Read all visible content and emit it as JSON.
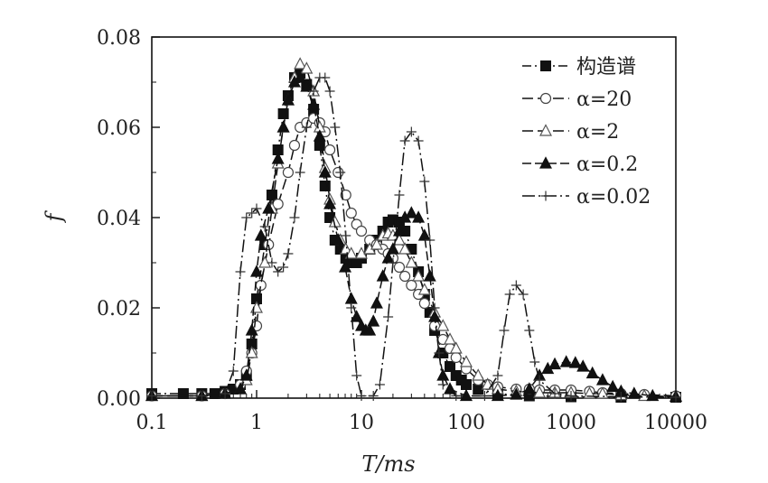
{
  "chart_data": {
    "type": "line",
    "xlabel": "T/ms",
    "ylabel": "f",
    "x_scale": "log",
    "xlim": [
      0.1,
      10000
    ],
    "ylim": [
      0,
      0.08
    ],
    "x_ticks": [
      "0.1",
      "1",
      "10",
      "100",
      "1000",
      "10000"
    ],
    "y_ticks": [
      "0.00",
      "0.02",
      "0.04",
      "0.06",
      "0.08"
    ],
    "legend_position": "top-right",
    "grid": false,
    "series": [
      {
        "name": "构造谱",
        "marker": "square-filled",
        "dash": "10 4 2 4",
        "points": [
          [
            0.1,
            0.001
          ],
          [
            0.2,
            0.001
          ],
          [
            0.3,
            0.001
          ],
          [
            0.4,
            0.001
          ],
          [
            0.5,
            0.0015
          ],
          [
            0.6,
            0.002
          ],
          [
            0.7,
            0.003
          ],
          [
            0.8,
            0.005
          ],
          [
            0.9,
            0.012
          ],
          [
            1.0,
            0.022
          ],
          [
            1.2,
            0.034
          ],
          [
            1.4,
            0.045
          ],
          [
            1.6,
            0.055
          ],
          [
            1.8,
            0.063
          ],
          [
            2.0,
            0.067
          ],
          [
            2.3,
            0.071
          ],
          [
            2.6,
            0.072
          ],
          [
            3.0,
            0.0695
          ],
          [
            3.5,
            0.064
          ],
          [
            4.0,
            0.056
          ],
          [
            4.5,
            0.047
          ],
          [
            5.0,
            0.04
          ],
          [
            5.6,
            0.035
          ],
          [
            6.3,
            0.033
          ],
          [
            7.1,
            0.031
          ],
          [
            8.0,
            0.03
          ],
          [
            9.0,
            0.03
          ],
          [
            10,
            0.031
          ],
          [
            12,
            0.033
          ],
          [
            14,
            0.035
          ],
          [
            16,
            0.037
          ],
          [
            18,
            0.039
          ],
          [
            20,
            0.0395
          ],
          [
            23,
            0.039
          ],
          [
            26,
            0.037
          ],
          [
            30,
            0.033
          ],
          [
            35,
            0.028
          ],
          [
            40,
            0.023
          ],
          [
            45,
            0.019
          ],
          [
            50,
            0.015
          ],
          [
            60,
            0.01
          ],
          [
            70,
            0.007
          ],
          [
            80,
            0.005
          ],
          [
            90,
            0.004
          ],
          [
            100,
            0.003
          ],
          [
            130,
            0.002
          ],
          [
            200,
            0.001
          ],
          [
            400,
            0.0005
          ],
          [
            1000,
            0.0003
          ],
          [
            3000,
            0.0002
          ],
          [
            10000,
            0.0002
          ]
        ]
      },
      {
        "name": "α=20",
        "marker": "circle-open",
        "dash": "12 5",
        "points": [
          [
            0.1,
            0.0005
          ],
          [
            0.3,
            0.0005
          ],
          [
            0.5,
            0.001
          ],
          [
            0.7,
            0.003
          ],
          [
            0.8,
            0.006
          ],
          [
            0.9,
            0.01
          ],
          [
            1.0,
            0.016
          ],
          [
            1.1,
            0.025
          ],
          [
            1.3,
            0.034
          ],
          [
            1.6,
            0.043
          ],
          [
            2.0,
            0.05
          ],
          [
            2.3,
            0.056
          ],
          [
            2.6,
            0.06
          ],
          [
            3.0,
            0.061
          ],
          [
            3.5,
            0.062
          ],
          [
            4.0,
            0.061
          ],
          [
            4.5,
            0.059
          ],
          [
            5.0,
            0.055
          ],
          [
            6.0,
            0.05
          ],
          [
            7.1,
            0.045
          ],
          [
            8.0,
            0.041
          ],
          [
            9.0,
            0.0385
          ],
          [
            10,
            0.037
          ],
          [
            12,
            0.035
          ],
          [
            14,
            0.034
          ],
          [
            16,
            0.033
          ],
          [
            18,
            0.032
          ],
          [
            20,
            0.031
          ],
          [
            23,
            0.029
          ],
          [
            26,
            0.027
          ],
          [
            30,
            0.025
          ],
          [
            35,
            0.023
          ],
          [
            40,
            0.021
          ],
          [
            50,
            0.016
          ],
          [
            60,
            0.013
          ],
          [
            70,
            0.011
          ],
          [
            80,
            0.009
          ],
          [
            100,
            0.0065
          ],
          [
            130,
            0.004
          ],
          [
            160,
            0.003
          ],
          [
            200,
            0.0025
          ],
          [
            300,
            0.002
          ],
          [
            400,
            0.002
          ],
          [
            500,
            0.0018
          ],
          [
            700,
            0.0018
          ],
          [
            1000,
            0.0018
          ],
          [
            1500,
            0.0015
          ],
          [
            2000,
            0.0012
          ],
          [
            3000,
            0.001
          ],
          [
            5000,
            0.0008
          ],
          [
            10000,
            0.0005
          ]
        ]
      },
      {
        "name": "α=2",
        "marker": "triangle-open",
        "dash": "12 5",
        "points": [
          [
            0.1,
            0.0005
          ],
          [
            0.3,
            0.0005
          ],
          [
            0.5,
            0.001
          ],
          [
            0.7,
            0.002
          ],
          [
            0.8,
            0.004
          ],
          [
            0.9,
            0.01
          ],
          [
            1.0,
            0.02
          ],
          [
            1.2,
            0.03
          ],
          [
            1.4,
            0.042
          ],
          [
            1.6,
            0.052
          ],
          [
            1.8,
            0.06
          ],
          [
            2.0,
            0.066
          ],
          [
            2.3,
            0.071
          ],
          [
            2.6,
            0.074
          ],
          [
            3.0,
            0.073
          ],
          [
            3.5,
            0.068
          ],
          [
            4.0,
            0.06
          ],
          [
            4.5,
            0.051
          ],
          [
            5.0,
            0.044
          ],
          [
            5.6,
            0.039
          ],
          [
            6.3,
            0.035
          ],
          [
            7.1,
            0.033
          ],
          [
            8.0,
            0.032
          ],
          [
            10,
            0.032
          ],
          [
            12,
            0.033
          ],
          [
            14,
            0.034
          ],
          [
            16,
            0.036
          ],
          [
            18,
            0.0365
          ],
          [
            20,
            0.036
          ],
          [
            23,
            0.035
          ],
          [
            26,
            0.033
          ],
          [
            30,
            0.03
          ],
          [
            35,
            0.027
          ],
          [
            40,
            0.024
          ],
          [
            50,
            0.019
          ],
          [
            60,
            0.016
          ],
          [
            70,
            0.013
          ],
          [
            80,
            0.011
          ],
          [
            100,
            0.008
          ],
          [
            130,
            0.005
          ],
          [
            160,
            0.003
          ],
          [
            200,
            0.002
          ],
          [
            300,
            0.0015
          ],
          [
            500,
            0.0012
          ],
          [
            700,
            0.0012
          ],
          [
            1000,
            0.0012
          ],
          [
            1500,
            0.001
          ],
          [
            2000,
            0.001
          ],
          [
            3000,
            0.0007
          ],
          [
            5000,
            0.0005
          ],
          [
            10000,
            0.0004
          ]
        ]
      },
      {
        "name": "α=0.2",
        "marker": "triangle-filled",
        "dash": "10 4",
        "points": [
          [
            0.1,
            0.0005
          ],
          [
            0.3,
            0.0005
          ],
          [
            0.5,
            0.001
          ],
          [
            0.7,
            0.002
          ],
          [
            0.8,
            0.005
          ],
          [
            0.9,
            0.015
          ],
          [
            1.0,
            0.028
          ],
          [
            1.1,
            0.036
          ],
          [
            1.3,
            0.042
          ],
          [
            1.6,
            0.053
          ],
          [
            1.8,
            0.06
          ],
          [
            2.0,
            0.066
          ],
          [
            2.3,
            0.07
          ],
          [
            2.6,
            0.071
          ],
          [
            3.0,
            0.069
          ],
          [
            3.5,
            0.065
          ],
          [
            4.0,
            0.058
          ],
          [
            4.5,
            0.05
          ],
          [
            5.0,
            0.043
          ],
          [
            6.0,
            0.035
          ],
          [
            7.0,
            0.029
          ],
          [
            8.0,
            0.022
          ],
          [
            9.0,
            0.018
          ],
          [
            10,
            0.016
          ],
          [
            11,
            0.015
          ],
          [
            12,
            0.015
          ],
          [
            13,
            0.017
          ],
          [
            14,
            0.021
          ],
          [
            16,
            0.027
          ],
          [
            18,
            0.031
          ],
          [
            20,
            0.033
          ],
          [
            23,
            0.037
          ],
          [
            26,
            0.04
          ],
          [
            30,
            0.041
          ],
          [
            35,
            0.04
          ],
          [
            40,
            0.036
          ],
          [
            45,
            0.027
          ],
          [
            50,
            0.018
          ],
          [
            55,
            0.01
          ],
          [
            60,
            0.005
          ],
          [
            70,
            0.002
          ],
          [
            100,
            0.0005
          ],
          [
            200,
            0.0005
          ],
          [
            300,
            0.0008
          ],
          [
            400,
            0.002
          ],
          [
            500,
            0.005
          ],
          [
            600,
            0.0065
          ],
          [
            700,
            0.0075
          ],
          [
            900,
            0.008
          ],
          [
            1100,
            0.0078
          ],
          [
            1300,
            0.007
          ],
          [
            1600,
            0.0055
          ],
          [
            2000,
            0.004
          ],
          [
            2500,
            0.0025
          ],
          [
            3000,
            0.0015
          ],
          [
            4000,
            0.001
          ],
          [
            6000,
            0.0005
          ],
          [
            10000,
            0.0003
          ]
        ]
      },
      {
        "name": "α=0.02",
        "marker": "plus",
        "dash": "14 4 2 4",
        "points": [
          [
            0.1,
            0.0005
          ],
          [
            0.3,
            0.0005
          ],
          [
            0.5,
            0.001
          ],
          [
            0.6,
            0.006
          ],
          [
            0.7,
            0.028
          ],
          [
            0.8,
            0.04
          ],
          [
            0.9,
            0.041
          ],
          [
            1.0,
            0.042
          ],
          [
            1.2,
            0.038
          ],
          [
            1.4,
            0.03
          ],
          [
            1.6,
            0.028
          ],
          [
            1.8,
            0.029
          ],
          [
            2.0,
            0.032
          ],
          [
            2.3,
            0.04
          ],
          [
            2.6,
            0.05
          ],
          [
            3.0,
            0.06
          ],
          [
            3.5,
            0.068
          ],
          [
            4.0,
            0.071
          ],
          [
            4.5,
            0.071
          ],
          [
            5.0,
            0.068
          ],
          [
            5.6,
            0.06
          ],
          [
            6.3,
            0.05
          ],
          [
            7.1,
            0.036
          ],
          [
            8.0,
            0.02
          ],
          [
            9.0,
            0.005
          ],
          [
            10,
            0.0005
          ],
          [
            13,
            0.0005
          ],
          [
            15,
            0.003
          ],
          [
            18,
            0.018
          ],
          [
            20,
            0.03
          ],
          [
            23,
            0.045
          ],
          [
            26,
            0.057
          ],
          [
            30,
            0.059
          ],
          [
            35,
            0.057
          ],
          [
            40,
            0.048
          ],
          [
            45,
            0.035
          ],
          [
            50,
            0.02
          ],
          [
            55,
            0.01
          ],
          [
            60,
            0.003
          ],
          [
            80,
            0.0005
          ],
          [
            150,
            0.0005
          ],
          [
            200,
            0.005
          ],
          [
            230,
            0.015
          ],
          [
            260,
            0.023
          ],
          [
            300,
            0.025
          ],
          [
            350,
            0.023
          ],
          [
            400,
            0.015
          ],
          [
            450,
            0.008
          ],
          [
            500,
            0.004
          ],
          [
            700,
            0.001
          ],
          [
            1000,
            0.0005
          ],
          [
            3000,
            0.0003
          ],
          [
            10000,
            0.0002
          ]
        ]
      }
    ]
  }
}
